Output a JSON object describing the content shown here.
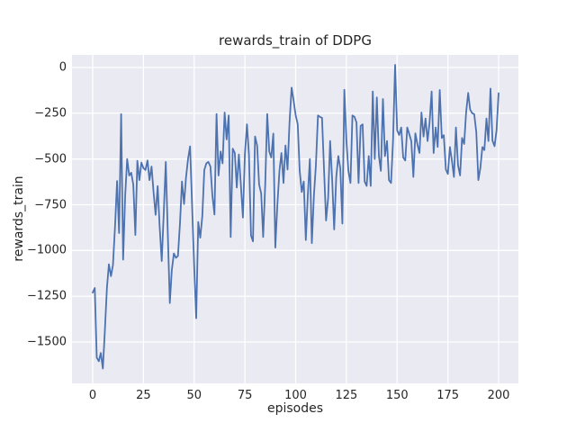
{
  "style": {
    "figure_bg": "#ffffff",
    "plot_bg": "#eaeaf2",
    "grid_color": "#ffffff",
    "line_color": "#4c72b0",
    "text_color": "#262626"
  },
  "chart_data": {
    "type": "line",
    "title": "rewards_train of DDPG",
    "xlabel": "episodes",
    "ylabel": "rewards_train",
    "legend": false,
    "grid": true,
    "xlim": [
      -10,
      210
    ],
    "ylim": [
      -1726,
      69
    ],
    "x_ticks": [
      0,
      25,
      50,
      75,
      100,
      125,
      150,
      175,
      200
    ],
    "x_tick_labels": [
      "0",
      "25",
      "50",
      "75",
      "100",
      "125",
      "150",
      "175",
      "200"
    ],
    "y_ticks": [
      0,
      -250,
      -500,
      -750,
      -1000,
      -1250,
      -1500
    ],
    "y_tick_labels": [
      "0",
      "−250",
      "−500",
      "−750",
      "−1000",
      "−1250",
      "−1500"
    ],
    "series": [
      {
        "name": "rewards_train",
        "x_start": 0,
        "x_step": 1,
        "values": [
          -1230,
          -1205,
          -1585,
          -1605,
          -1560,
          -1645,
          -1440,
          -1205,
          -1075,
          -1140,
          -1080,
          -870,
          -620,
          -905,
          -255,
          -1050,
          -700,
          -500,
          -590,
          -575,
          -640,
          -915,
          -510,
          -615,
          -520,
          -550,
          -560,
          -508,
          -615,
          -541,
          -680,
          -805,
          -648,
          -870,
          -1058,
          -800,
          -516,
          -900,
          -1287,
          -1107,
          -1016,
          -1040,
          -1030,
          -850,
          -623,
          -746,
          -600,
          -497,
          -431,
          -763,
          -1090,
          -1370,
          -844,
          -930,
          -812,
          -560,
          -524,
          -516,
          -541,
          -700,
          -803,
          -254,
          -590,
          -459,
          -524,
          -246,
          -393,
          -262,
          -926,
          -443,
          -467,
          -656,
          -475,
          -639,
          -820,
          -475,
          -311,
          -475,
          -918,
          -950,
          -377,
          -426,
          -639,
          -688,
          -926,
          -639,
          -254,
          -459,
          -492,
          -361,
          -984,
          -750,
          -565,
          -467,
          -631,
          -426,
          -557,
          -300,
          -110,
          -180,
          -260,
          -310,
          -565,
          -680,
          -623,
          -943,
          -700,
          -500,
          -960,
          -700,
          -533,
          -262,
          -270,
          -275,
          -565,
          -836,
          -713,
          -402,
          -615,
          -885,
          -600,
          -484,
          -549,
          -853,
          -122,
          -400,
          -565,
          -631,
          -262,
          -270,
          -300,
          -631,
          -319,
          -311,
          -623,
          -647,
          -484,
          -647,
          -131,
          -500,
          -164,
          -484,
          -565,
          -172,
          -484,
          -402,
          -615,
          -631,
          -400,
          15,
          -344,
          -369,
          -328,
          -492,
          -508,
          -328,
          -365,
          -402,
          -598,
          -360,
          -420,
          -467,
          -246,
          -377,
          -279,
          -402,
          -300,
          -131,
          -467,
          -328,
          -435,
          -123,
          -385,
          -370,
          -557,
          -582,
          -435,
          -508,
          -598,
          -328,
          -533,
          -590,
          -385,
          -418,
          -246,
          -139,
          -230,
          -250,
          -255,
          -352,
          -615,
          -550,
          -435,
          -451,
          -279,
          -402,
          -115,
          -400,
          -430,
          -344,
          -140
        ]
      }
    ]
  }
}
